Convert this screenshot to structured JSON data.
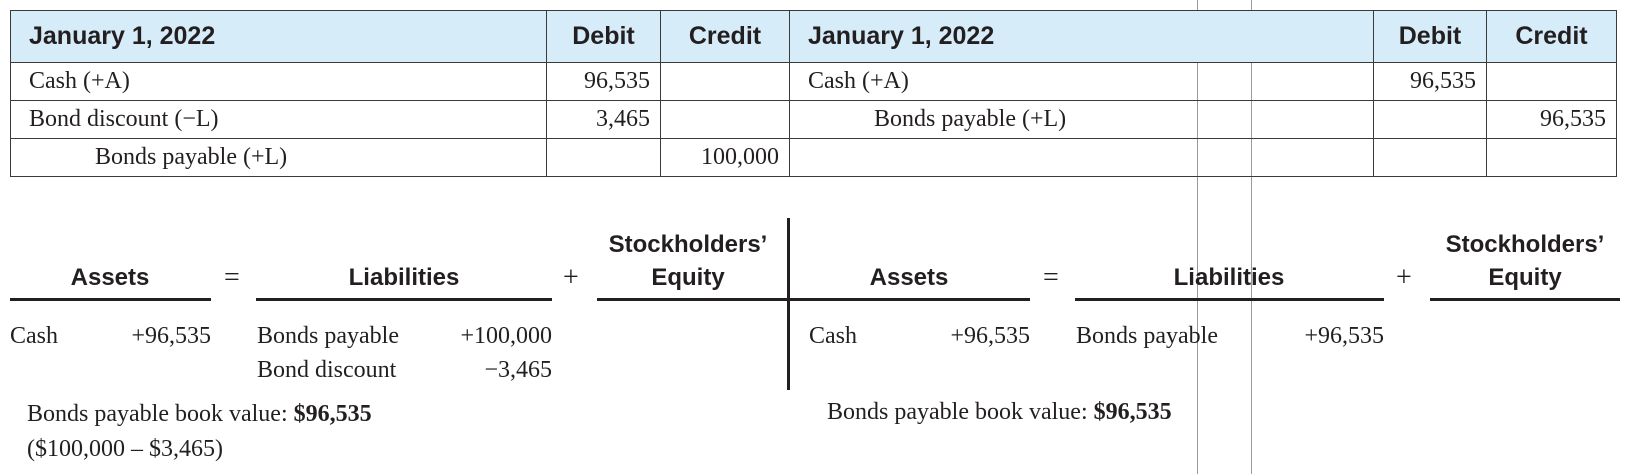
{
  "left_journal": {
    "date": "January 1, 2022",
    "debit_header": "Debit",
    "credit_header": "Credit",
    "rows": [
      {
        "account": "Cash (+A)",
        "debit": "96,535",
        "credit": ""
      },
      {
        "account": "Bond discount (−L)",
        "debit": "3,465",
        "credit": ""
      },
      {
        "account": "Bonds payable (+L)",
        "debit": "",
        "credit": "100,000"
      }
    ]
  },
  "right_journal": {
    "date": "January 1, 2022",
    "debit_header": "Debit",
    "credit_header": "Credit",
    "rows": [
      {
        "account": "Cash (+A)",
        "debit": "96,535",
        "credit": ""
      },
      {
        "account": "Bonds payable (+L)",
        "debit": "",
        "credit": "96,535"
      },
      {
        "account": "",
        "debit": "",
        "credit": ""
      }
    ]
  },
  "left_equation": {
    "assets": "Assets",
    "equals": "=",
    "liabilities": "Liabilities",
    "plus": "+",
    "equity_line1": "Stockholders’",
    "equity_line2": "Equity",
    "asset_label": "Cash",
    "asset_value": "+96,535",
    "liab_items": [
      {
        "label": "Bonds payable",
        "value": "+100,000"
      },
      {
        "label": "Bond discount",
        "value": "−3,465"
      }
    ],
    "book_value_label": "Bonds payable book value: ",
    "book_value": "$96,535",
    "book_value_calc": "($100,000 – $3,465)"
  },
  "right_equation": {
    "assets": "Assets",
    "equals": "=",
    "liabilities": "Liabilities",
    "plus": "+",
    "equity_line1": "Stockholders’",
    "equity_line2": "Equity",
    "asset_label": "Cash",
    "asset_value": "+96,535",
    "liab_items": [
      {
        "label": "Bonds payable",
        "value": "+96,535"
      }
    ],
    "book_value_label": "Bonds payable book value: ",
    "book_value": "$96,535"
  }
}
